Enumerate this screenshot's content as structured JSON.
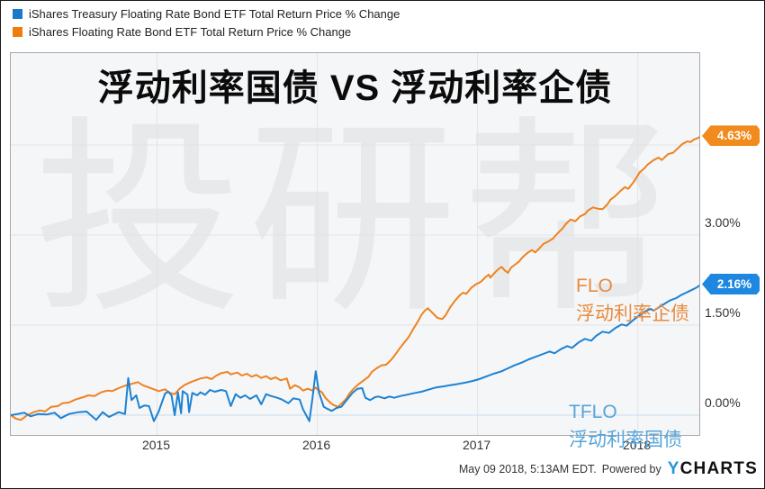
{
  "legend": {
    "items": [
      {
        "label": "iShares Treasury Floating Rate Bond ETF Total Return Price % Change",
        "color": "#1b79cc"
      },
      {
        "label": "iShares Floating Rate Bond ETF Total Return Price % Change",
        "color": "#f07d0a"
      }
    ]
  },
  "title": "浮动利率国债 VS 浮动利率企债",
  "watermark": "投研帮",
  "footer": {
    "timestamp": "May 09 2018, 5:13AM EDT.",
    "powered_by": "Powered by",
    "logo_part1": "Y",
    "logo_part2": "CHARTS"
  },
  "chart_data": {
    "type": "line",
    "title": "浮动利率国债 VS 浮动利率企债",
    "x_axis": {
      "range": [
        2014.087,
        2018.384
      ],
      "ticks": [
        {
          "t": 2015,
          "label": "2015"
        },
        {
          "t": 2016,
          "label": "2016"
        },
        {
          "t": 2017,
          "label": "2017"
        },
        {
          "t": 2018,
          "label": "2018"
        }
      ]
    },
    "y_axis": {
      "unit": "%",
      "range": [
        -0.33,
        6.03
      ],
      "gridline_values": [
        0,
        1.5,
        3,
        4.5
      ],
      "tick_labels": [
        {
          "v": 0,
          "label": "0.00%"
        },
        {
          "v": 1.5,
          "label": "1.50%"
        },
        {
          "v": 3,
          "label": "3.00%"
        }
      ],
      "gridline_color": "#e3e4e6",
      "zero_line_color": "#c8dcee"
    },
    "series": [
      {
        "name": "iShares Floating Rate Bond ETF Total Return Price % Change",
        "ticker": "FLO",
        "label_cn": "浮动利率企债",
        "color": "#ef8220",
        "label_color": "#e88a3e",
        "end_value": "4.63%",
        "points": [
          [
            2014.087,
            0
          ],
          [
            2014.12,
            -0.06
          ],
          [
            2014.15,
            -0.08
          ],
          [
            2014.19,
            0
          ],
          [
            2014.23,
            0.05
          ],
          [
            2014.27,
            0.08
          ],
          [
            2014.3,
            0.06
          ],
          [
            2014.34,
            0.14
          ],
          [
            2014.38,
            0.15
          ],
          [
            2014.41,
            0.2
          ],
          [
            2014.45,
            0.21
          ],
          [
            2014.49,
            0.26
          ],
          [
            2014.54,
            0.3
          ],
          [
            2014.57,
            0.33
          ],
          [
            2014.61,
            0.32
          ],
          [
            2014.65,
            0.38
          ],
          [
            2014.69,
            0.41
          ],
          [
            2014.72,
            0.4
          ],
          [
            2014.76,
            0.45
          ],
          [
            2014.8,
            0.49
          ],
          [
            2014.84,
            0.52
          ],
          [
            2014.88,
            0.55
          ],
          [
            2014.91,
            0.5
          ],
          [
            2014.94,
            0.47
          ],
          [
            2014.98,
            0.43
          ],
          [
            2015.01,
            0.4
          ],
          [
            2015.05,
            0.43
          ],
          [
            2015.08,
            0.37
          ],
          [
            2015.11,
            0.35
          ],
          [
            2015.14,
            0.44
          ],
          [
            2015.17,
            0.5
          ],
          [
            2015.21,
            0.55
          ],
          [
            2015.24,
            0.58
          ],
          [
            2015.27,
            0.61
          ],
          [
            2015.31,
            0.63
          ],
          [
            2015.34,
            0.6
          ],
          [
            2015.37,
            0.66
          ],
          [
            2015.4,
            0.7
          ],
          [
            2015.44,
            0.72
          ],
          [
            2015.46,
            0.68
          ],
          [
            2015.5,
            0.71
          ],
          [
            2015.53,
            0.66
          ],
          [
            2015.56,
            0.69
          ],
          [
            2015.59,
            0.64
          ],
          [
            2015.62,
            0.67
          ],
          [
            2015.65,
            0.62
          ],
          [
            2015.68,
            0.65
          ],
          [
            2015.71,
            0.6
          ],
          [
            2015.74,
            0.63
          ],
          [
            2015.77,
            0.58
          ],
          [
            2015.81,
            0.61
          ],
          [
            2015.83,
            0.44
          ],
          [
            2015.86,
            0.5
          ],
          [
            2015.89,
            0.46
          ],
          [
            2015.91,
            0.41
          ],
          [
            2015.94,
            0.44
          ],
          [
            2015.97,
            0.41
          ],
          [
            2015.99,
            0.46
          ],
          [
            2016.0,
            0.43
          ],
          [
            2016.03,
            0.38
          ],
          [
            2016.05,
            0.29
          ],
          [
            2016.08,
            0.21
          ],
          [
            2016.1,
            0.17
          ],
          [
            2016.13,
            0.14
          ],
          [
            2016.15,
            0.19
          ],
          [
            2016.18,
            0.27
          ],
          [
            2016.2,
            0.36
          ],
          [
            2016.23,
            0.45
          ],
          [
            2016.26,
            0.52
          ],
          [
            2016.29,
            0.58
          ],
          [
            2016.32,
            0.64
          ],
          [
            2016.34,
            0.72
          ],
          [
            2016.37,
            0.78
          ],
          [
            2016.4,
            0.83
          ],
          [
            2016.43,
            0.84
          ],
          [
            2016.46,
            0.92
          ],
          [
            2016.49,
            1.02
          ],
          [
            2016.51,
            1.1
          ],
          [
            2016.54,
            1.2
          ],
          [
            2016.57,
            1.3
          ],
          [
            2016.6,
            1.44
          ],
          [
            2016.63,
            1.57
          ],
          [
            2016.65,
            1.67
          ],
          [
            2016.67,
            1.74
          ],
          [
            2016.69,
            1.78
          ],
          [
            2016.72,
            1.7
          ],
          [
            2016.75,
            1.62
          ],
          [
            2016.78,
            1.6
          ],
          [
            2016.8,
            1.66
          ],
          [
            2016.83,
            1.8
          ],
          [
            2016.86,
            1.91
          ],
          [
            2016.89,
            2.0
          ],
          [
            2016.91,
            2.04
          ],
          [
            2016.93,
            2.02
          ],
          [
            2016.96,
            2.12
          ],
          [
            2016.99,
            2.18
          ],
          [
            2017.02,
            2.22
          ],
          [
            2017.05,
            2.3
          ],
          [
            2017.07,
            2.34
          ],
          [
            2017.08,
            2.29
          ],
          [
            2017.11,
            2.38
          ],
          [
            2017.13,
            2.43
          ],
          [
            2017.15,
            2.47
          ],
          [
            2017.17,
            2.41
          ],
          [
            2017.19,
            2.37
          ],
          [
            2017.21,
            2.46
          ],
          [
            2017.24,
            2.52
          ],
          [
            2017.26,
            2.56
          ],
          [
            2017.28,
            2.63
          ],
          [
            2017.31,
            2.7
          ],
          [
            2017.34,
            2.75
          ],
          [
            2017.36,
            2.71
          ],
          [
            2017.39,
            2.79
          ],
          [
            2017.41,
            2.85
          ],
          [
            2017.44,
            2.89
          ],
          [
            2017.47,
            2.94
          ],
          [
            2017.5,
            3.03
          ],
          [
            2017.53,
            3.11
          ],
          [
            2017.55,
            3.18
          ],
          [
            2017.58,
            3.26
          ],
          [
            2017.61,
            3.23
          ],
          [
            2017.64,
            3.31
          ],
          [
            2017.67,
            3.35
          ],
          [
            2017.69,
            3.41
          ],
          [
            2017.72,
            3.46
          ],
          [
            2017.75,
            3.44
          ],
          [
            2017.78,
            3.43
          ],
          [
            2017.81,
            3.51
          ],
          [
            2017.83,
            3.59
          ],
          [
            2017.86,
            3.65
          ],
          [
            2017.89,
            3.73
          ],
          [
            2017.92,
            3.8
          ],
          [
            2017.94,
            3.77
          ],
          [
            2017.97,
            3.87
          ],
          [
            2017.99,
            3.95
          ],
          [
            2018.01,
            4.04
          ],
          [
            2018.04,
            4.11
          ],
          [
            2018.06,
            4.17
          ],
          [
            2018.08,
            4.21
          ],
          [
            2018.1,
            4.25
          ],
          [
            2018.13,
            4.29
          ],
          [
            2018.15,
            4.25
          ],
          [
            2018.17,
            4.3
          ],
          [
            2018.19,
            4.35
          ],
          [
            2018.22,
            4.37
          ],
          [
            2018.24,
            4.42
          ],
          [
            2018.26,
            4.47
          ],
          [
            2018.28,
            4.52
          ],
          [
            2018.31,
            4.56
          ],
          [
            2018.33,
            4.55
          ],
          [
            2018.35,
            4.59
          ],
          [
            2018.37,
            4.61
          ],
          [
            2018.384,
            4.63
          ]
        ]
      },
      {
        "name": "iShares Treasury Floating Rate Bond ETF Total Return Price % Change",
        "ticker": "TFLO",
        "label_cn": "浮动利率国债",
        "color": "#1d82d2",
        "label_color": "#57a5d9",
        "end_value": "2.16%",
        "points": [
          [
            2014.087,
            0
          ],
          [
            2014.13,
            0.02
          ],
          [
            2014.17,
            0.04
          ],
          [
            2014.21,
            -0.02
          ],
          [
            2014.26,
            0.02
          ],
          [
            2014.31,
            0.01
          ],
          [
            2014.36,
            0.04
          ],
          [
            2014.4,
            -0.05
          ],
          [
            2014.45,
            0.02
          ],
          [
            2014.51,
            0.05
          ],
          [
            2014.56,
            0.06
          ],
          [
            2014.62,
            -0.08
          ],
          [
            2014.66,
            0.05
          ],
          [
            2014.7,
            -0.03
          ],
          [
            2014.76,
            0.05
          ],
          [
            2014.8,
            0.02
          ],
          [
            2014.82,
            0.62
          ],
          [
            2014.84,
            0.25
          ],
          [
            2014.87,
            0.33
          ],
          [
            2014.89,
            0.12
          ],
          [
            2014.92,
            0.16
          ],
          [
            2014.95,
            0.15
          ],
          [
            2014.98,
            -0.1
          ],
          [
            2015.01,
            0.06
          ],
          [
            2015.05,
            0.36
          ],
          [
            2015.07,
            0.39
          ],
          [
            2015.09,
            0.33
          ],
          [
            2015.11,
            0
          ],
          [
            2015.13,
            0.38
          ],
          [
            2015.15,
            0.03
          ],
          [
            2015.16,
            0.4
          ],
          [
            2015.19,
            0.34
          ],
          [
            2015.2,
            0.05
          ],
          [
            2015.22,
            0.37
          ],
          [
            2015.25,
            0.33
          ],
          [
            2015.27,
            0.38
          ],
          [
            2015.3,
            0.34
          ],
          [
            2015.33,
            0.42
          ],
          [
            2015.36,
            0.39
          ],
          [
            2015.4,
            0.42
          ],
          [
            2015.43,
            0.4
          ],
          [
            2015.46,
            0.15
          ],
          [
            2015.49,
            0.35
          ],
          [
            2015.52,
            0.29
          ],
          [
            2015.55,
            0.33
          ],
          [
            2015.58,
            0.27
          ],
          [
            2015.62,
            0.33
          ],
          [
            2015.65,
            0.18
          ],
          [
            2015.68,
            0.35
          ],
          [
            2015.71,
            0.32
          ],
          [
            2015.75,
            0.29
          ],
          [
            2015.78,
            0.26
          ],
          [
            2015.82,
            0.2
          ],
          [
            2015.85,
            0.28
          ],
          [
            2015.89,
            0.26
          ],
          [
            2015.91,
            0.1
          ],
          [
            2015.95,
            -0.1
          ],
          [
            2015.97,
            0.28
          ],
          [
            2015.99,
            0.73
          ],
          [
            2016.01,
            0.38
          ],
          [
            2016.04,
            0.14
          ],
          [
            2016.06,
            0.11
          ],
          [
            2016.09,
            0.07
          ],
          [
            2016.12,
            0.12
          ],
          [
            2016.15,
            0.14
          ],
          [
            2016.18,
            0.24
          ],
          [
            2016.22,
            0.37
          ],
          [
            2016.25,
            0.44
          ],
          [
            2016.28,
            0.45
          ],
          [
            2016.3,
            0.29
          ],
          [
            2016.33,
            0.25
          ],
          [
            2016.36,
            0.3
          ],
          [
            2016.38,
            0.31
          ],
          [
            2016.42,
            0.28
          ],
          [
            2016.45,
            0.31
          ],
          [
            2016.48,
            0.29
          ],
          [
            2016.52,
            0.32
          ],
          [
            2016.56,
            0.34
          ],
          [
            2016.61,
            0.37
          ],
          [
            2016.65,
            0.39
          ],
          [
            2016.7,
            0.43
          ],
          [
            2016.74,
            0.46
          ],
          [
            2016.79,
            0.48
          ],
          [
            2016.83,
            0.5
          ],
          [
            2016.88,
            0.52
          ],
          [
            2016.92,
            0.54
          ],
          [
            2016.97,
            0.57
          ],
          [
            2017.01,
            0.6
          ],
          [
            2017.06,
            0.65
          ],
          [
            2017.1,
            0.69
          ],
          [
            2017.15,
            0.73
          ],
          [
            2017.19,
            0.78
          ],
          [
            2017.23,
            0.83
          ],
          [
            2017.28,
            0.88
          ],
          [
            2017.32,
            0.93
          ],
          [
            2017.37,
            0.98
          ],
          [
            2017.41,
            1.02
          ],
          [
            2017.45,
            1.06
          ],
          [
            2017.48,
            1.03
          ],
          [
            2017.52,
            1.1
          ],
          [
            2017.56,
            1.15
          ],
          [
            2017.59,
            1.12
          ],
          [
            2017.63,
            1.21
          ],
          [
            2017.67,
            1.27
          ],
          [
            2017.71,
            1.24
          ],
          [
            2017.74,
            1.32
          ],
          [
            2017.78,
            1.39
          ],
          [
            2017.82,
            1.37
          ],
          [
            2017.86,
            1.45
          ],
          [
            2017.9,
            1.51
          ],
          [
            2017.93,
            1.49
          ],
          [
            2017.97,
            1.58
          ],
          [
            2018.01,
            1.66
          ],
          [
            2018.04,
            1.72
          ],
          [
            2018.08,
            1.77
          ],
          [
            2018.1,
            1.74
          ],
          [
            2018.14,
            1.81
          ],
          [
            2018.17,
            1.86
          ],
          [
            2018.2,
            1.91
          ],
          [
            2018.24,
            1.95
          ],
          [
            2018.27,
            2.0
          ],
          [
            2018.31,
            2.05
          ],
          [
            2018.34,
            2.09
          ],
          [
            2018.37,
            2.13
          ],
          [
            2018.384,
            2.16
          ]
        ]
      }
    ]
  }
}
